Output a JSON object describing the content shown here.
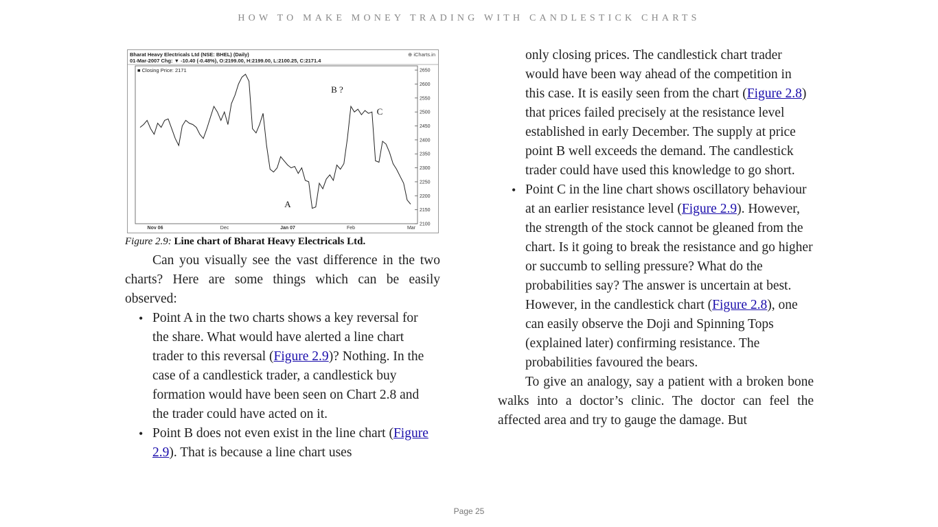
{
  "header": {
    "running_title": "HOW TO MAKE MONEY TRADING WITH CANDLESTICK CHARTS"
  },
  "figure": {
    "header_line1": "Bharat Heavy Electricals Ltd (NSE: BHEL) (Daily)",
    "header_line2": "01-Mar-2007 Chg: ▼ -10.40 (-0.48%), O:2199.00, H:2199.00, L:2100.25, C:2171.4",
    "brand": "⊕ iCharts.in",
    "legend": "■ Closing Price: 2171",
    "caption_label": "Figure 2.9:",
    "caption_title": "Line chart of Bharat Heavy Electricals Ltd."
  },
  "chart_data": {
    "type": "line",
    "title": "Bharat Heavy Electricals Ltd (NSE: BHEL) (Daily)",
    "series": [
      {
        "name": "Closing Price",
        "values": [
          2445,
          2455,
          2470,
          2440,
          2420,
          2460,
          2445,
          2470,
          2475,
          2440,
          2405,
          2380,
          2450,
          2470,
          2460,
          2455,
          2445,
          2420,
          2405,
          2440,
          2480,
          2520,
          2500,
          2470,
          2500,
          2455,
          2530,
          2560,
          2600,
          2625,
          2635,
          2610,
          2440,
          2425,
          2455,
          2495,
          2380,
          2295,
          2285,
          2300,
          2340,
          2325,
          2310,
          2300,
          2305,
          2280,
          2300,
          2255,
          2250,
          2155,
          2160,
          2245,
          2225,
          2260,
          2275,
          2255,
          2310,
          2295,
          2315,
          2405,
          2520,
          2500,
          2510,
          2490,
          2505,
          2495,
          2500,
          2325,
          2320,
          2395,
          2385,
          2355,
          2315,
          2295,
          2270,
          2245,
          2185,
          2170
        ]
      }
    ],
    "x_ticks": [
      "Nov 06",
      "Dec",
      "Jan 07",
      "Feb",
      "Mar"
    ],
    "y_ticks": [
      2100,
      2150,
      2200,
      2250,
      2300,
      2350,
      2400,
      2450,
      2500,
      2550,
      2600,
      2650
    ],
    "ylim": [
      2100,
      2665
    ],
    "annotations": [
      "A",
      "B ?",
      "C"
    ],
    "grid": false,
    "legend": "top-left"
  },
  "left_column": {
    "intro": "Can you visually see the vast difference in the two charts? Here are some things which can be easily observed:",
    "bullet_a_pre": "Point A in the two charts shows a key reversal for the share. What would have alerted a line chart trader to this reversal (",
    "bullet_a_link": "Figure 2.9",
    "bullet_a_post": ")? Nothing. In the case of a candlestick trader, a candlestick buy formation would have been seen on Chart 2.8 and the trader could have acted on it.",
    "bullet_b_pre": "Point B does not even exist in the line chart (",
    "bullet_b_link": "Figure 2.9",
    "bullet_b_post": "). That is because a line chart uses"
  },
  "right_column": {
    "bullet_b_cont_pre": "only closing prices. The candlestick chart trader would have been way ahead of the competition in this case. It is easily seen from the chart (",
    "bullet_b_cont_link": "Figure 2.8",
    "bullet_b_cont_post": ") that prices failed precisely at the resistance level established in early December. The supply at price point B well exceeds the demand. The candlestick trader could have used this knowledge to go short.",
    "bullet_c_pre": "Point C in the line chart shows oscillatory behaviour at an earlier resistance level (",
    "bullet_c_link1": "Figure 2.9",
    "bullet_c_mid": "). However, the strength of the stock cannot be gleaned from the chart. Is it going to break the resistance and go higher or succumb to selling pressure? What do the probabilities say? The answer is uncertain at best. However, in the candlestick chart (",
    "bullet_c_link2": "Figure 2.8",
    "bullet_c_post": "), one can easily observe the Doji and Spinning Tops (explained later) confirming resistance. The probabilities favoured the bears.",
    "analogy": "To give an analogy, say a patient with a broken bone walks into a doctor’s clinic. The doctor can feel the affected area and try to gauge the damage. But"
  },
  "footer": {
    "page_label": "Page 25"
  }
}
